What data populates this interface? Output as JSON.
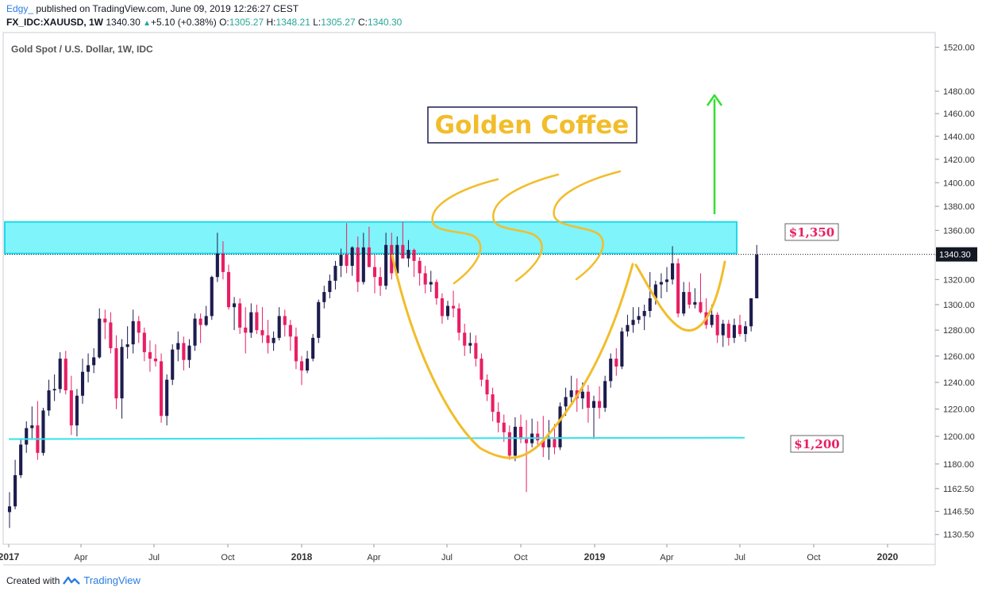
{
  "header": {
    "author": "Edgy_",
    "published": "published on TradingView.com, June 09, 2019 12:26:27 CEST",
    "symbol": "FX_IDC:XAUUSD, 1W",
    "last": "1340.30",
    "change": "+5.10 (+0.38%)",
    "ohlc": [
      {
        "label": "O:",
        "value": "1305.27"
      },
      {
        "label": "H:",
        "value": "1348.21"
      },
      {
        "label": "L:",
        "value": "1305.27"
      },
      {
        "label": "C:",
        "value": "1340.30"
      }
    ]
  },
  "footer": {
    "created": "Created with",
    "brand": "TradingView"
  },
  "colors": {
    "up": "#1c1c4e",
    "down": "#e91e63",
    "zone": "#7ff4fb",
    "zoneBorder": "#22d8e8",
    "support": "#33e3ee",
    "cup": "#f2bd2b",
    "arrow": "#33e033",
    "label": "#e91e63",
    "annot": "#f2bd2b"
  },
  "chart_data": {
    "type": "candlestick",
    "title": "Gold Spot / U.S. Dollar, 1W, IDC",
    "ylim": [
      1125,
      1530
    ],
    "y_scale": "log",
    "y_ticks": [
      1130.5,
      1146.5,
      1162.5,
      1180.0,
      1200.0,
      1220.0,
      1240.0,
      1260.0,
      1280.0,
      1300.0,
      1320.0,
      1340.0,
      1360.0,
      1380.0,
      1400.0,
      1420.0,
      1440.0,
      1460.0,
      1480.0,
      1520.0
    ],
    "x_ticks": [
      {
        "label": "2017",
        "date": "2017-01-01",
        "bold": true
      },
      {
        "label": "Apr",
        "date": "2017-04-01"
      },
      {
        "label": "Jul",
        "date": "2017-07-01"
      },
      {
        "label": "Oct",
        "date": "2017-10-01"
      },
      {
        "label": "2018",
        "date": "2018-01-01",
        "bold": true
      },
      {
        "label": "Apr",
        "date": "2018-04-01"
      },
      {
        "label": "Jul",
        "date": "2018-07-01"
      },
      {
        "label": "Oct",
        "date": "2018-10-01"
      },
      {
        "label": "2019",
        "date": "2019-01-01",
        "bold": true
      },
      {
        "label": "Apr",
        "date": "2019-04-01"
      },
      {
        "label": "Jul",
        "date": "2019-07-01"
      },
      {
        "label": "Oct",
        "date": "2019-10-01"
      },
      {
        "label": "2020",
        "date": "2020-01-01",
        "bold": true
      }
    ],
    "first_candle_date": "2017-01-02",
    "candles": [
      {
        "o": 1146,
        "h": 1160,
        "l": 1135,
        "c": 1150
      },
      {
        "o": 1150,
        "h": 1183,
        "l": 1148,
        "c": 1172
      },
      {
        "o": 1172,
        "h": 1198,
        "l": 1170,
        "c": 1194
      },
      {
        "o": 1194,
        "h": 1211,
        "l": 1188,
        "c": 1206
      },
      {
        "o": 1206,
        "h": 1222,
        "l": 1198,
        "c": 1208
      },
      {
        "o": 1208,
        "h": 1226,
        "l": 1183,
        "c": 1188
      },
      {
        "o": 1188,
        "h": 1221,
        "l": 1186,
        "c": 1219
      },
      {
        "o": 1219,
        "h": 1242,
        "l": 1215,
        "c": 1234
      },
      {
        "o": 1234,
        "h": 1246,
        "l": 1226,
        "c": 1235
      },
      {
        "o": 1235,
        "h": 1263,
        "l": 1232,
        "c": 1258
      },
      {
        "o": 1258,
        "h": 1264,
        "l": 1231,
        "c": 1234
      },
      {
        "o": 1234,
        "h": 1245,
        "l": 1201,
        "c": 1208
      },
      {
        "o": 1208,
        "h": 1235,
        "l": 1200,
        "c": 1230
      },
      {
        "o": 1230,
        "h": 1258,
        "l": 1224,
        "c": 1248
      },
      {
        "o": 1248,
        "h": 1262,
        "l": 1240,
        "c": 1253
      },
      {
        "o": 1253,
        "h": 1266,
        "l": 1247,
        "c": 1259
      },
      {
        "o": 1259,
        "h": 1297,
        "l": 1258,
        "c": 1289
      },
      {
        "o": 1289,
        "h": 1296,
        "l": 1273,
        "c": 1286
      },
      {
        "o": 1286,
        "h": 1294,
        "l": 1262,
        "c": 1266
      },
      {
        "o": 1266,
        "h": 1276,
        "l": 1220,
        "c": 1228
      },
      {
        "o": 1228,
        "h": 1273,
        "l": 1213,
        "c": 1267
      },
      {
        "o": 1267,
        "h": 1283,
        "l": 1258,
        "c": 1269
      },
      {
        "o": 1269,
        "h": 1296,
        "l": 1262,
        "c": 1287
      },
      {
        "o": 1287,
        "h": 1291,
        "l": 1270,
        "c": 1278
      },
      {
        "o": 1278,
        "h": 1282,
        "l": 1256,
        "c": 1263
      },
      {
        "o": 1263,
        "h": 1272,
        "l": 1248,
        "c": 1258
      },
      {
        "o": 1258,
        "h": 1269,
        "l": 1252,
        "c": 1256
      },
      {
        "o": 1256,
        "h": 1262,
        "l": 1210,
        "c": 1215
      },
      {
        "o": 1215,
        "h": 1246,
        "l": 1208,
        "c": 1242
      },
      {
        "o": 1242,
        "h": 1269,
        "l": 1238,
        "c": 1265
      },
      {
        "o": 1265,
        "h": 1279,
        "l": 1256,
        "c": 1270
      },
      {
        "o": 1270,
        "h": 1275,
        "l": 1249,
        "c": 1257
      },
      {
        "o": 1257,
        "h": 1273,
        "l": 1251,
        "c": 1268
      },
      {
        "o": 1268,
        "h": 1293,
        "l": 1264,
        "c": 1289
      },
      {
        "o": 1289,
        "h": 1293,
        "l": 1270,
        "c": 1284
      },
      {
        "o": 1284,
        "h": 1299,
        "l": 1283,
        "c": 1291
      },
      {
        "o": 1291,
        "h": 1323,
        "l": 1288,
        "c": 1322
      },
      {
        "o": 1322,
        "h": 1358,
        "l": 1318,
        "c": 1341
      },
      {
        "o": 1341,
        "h": 1351,
        "l": 1320,
        "c": 1326
      },
      {
        "o": 1326,
        "h": 1332,
        "l": 1296,
        "c": 1298
      },
      {
        "o": 1298,
        "h": 1306,
        "l": 1280,
        "c": 1301
      },
      {
        "o": 1301,
        "h": 1305,
        "l": 1277,
        "c": 1282
      },
      {
        "o": 1282,
        "h": 1298,
        "l": 1262,
        "c": 1278
      },
      {
        "o": 1278,
        "h": 1301,
        "l": 1274,
        "c": 1294
      },
      {
        "o": 1294,
        "h": 1300,
        "l": 1277,
        "c": 1280
      },
      {
        "o": 1280,
        "h": 1298,
        "l": 1270,
        "c": 1276
      },
      {
        "o": 1276,
        "h": 1288,
        "l": 1262,
        "c": 1270
      },
      {
        "o": 1270,
        "h": 1279,
        "l": 1264,
        "c": 1274
      },
      {
        "o": 1274,
        "h": 1298,
        "l": 1272,
        "c": 1291
      },
      {
        "o": 1291,
        "h": 1296,
        "l": 1275,
        "c": 1284
      },
      {
        "o": 1284,
        "h": 1288,
        "l": 1264,
        "c": 1275
      },
      {
        "o": 1275,
        "h": 1282,
        "l": 1250,
        "c": 1256
      },
      {
        "o": 1256,
        "h": 1260,
        "l": 1238,
        "c": 1249
      },
      {
        "o": 1249,
        "h": 1264,
        "l": 1247,
        "c": 1258
      },
      {
        "o": 1258,
        "h": 1277,
        "l": 1256,
        "c": 1274
      },
      {
        "o": 1274,
        "h": 1304,
        "l": 1270,
        "c": 1302
      },
      {
        "o": 1302,
        "h": 1315,
        "l": 1297,
        "c": 1310
      },
      {
        "o": 1310,
        "h": 1324,
        "l": 1305,
        "c": 1319
      },
      {
        "o": 1319,
        "h": 1335,
        "l": 1312,
        "c": 1331
      },
      {
        "o": 1331,
        "h": 1345,
        "l": 1322,
        "c": 1340
      },
      {
        "o": 1340,
        "h": 1366,
        "l": 1325,
        "c": 1331
      },
      {
        "o": 1331,
        "h": 1347,
        "l": 1323,
        "c": 1346
      },
      {
        "o": 1346,
        "h": 1355,
        "l": 1310,
        "c": 1318
      },
      {
        "o": 1318,
        "h": 1358,
        "l": 1316,
        "c": 1346
      },
      {
        "o": 1346,
        "h": 1363,
        "l": 1330,
        "c": 1330
      },
      {
        "o": 1330,
        "h": 1340,
        "l": 1309,
        "c": 1322
      },
      {
        "o": 1322,
        "h": 1330,
        "l": 1307,
        "c": 1315
      },
      {
        "o": 1315,
        "h": 1358,
        "l": 1312,
        "c": 1348
      },
      {
        "o": 1348,
        "h": 1358,
        "l": 1320,
        "c": 1325
      },
      {
        "o": 1325,
        "h": 1355,
        "l": 1320,
        "c": 1348
      },
      {
        "o": 1348,
        "h": 1367,
        "l": 1337,
        "c": 1337
      },
      {
        "o": 1337,
        "h": 1352,
        "l": 1330,
        "c": 1344
      },
      {
        "o": 1344,
        "h": 1345,
        "l": 1322,
        "c": 1335
      },
      {
        "o": 1335,
        "h": 1338,
        "l": 1315,
        "c": 1325
      },
      {
        "o": 1325,
        "h": 1331,
        "l": 1309,
        "c": 1316
      },
      {
        "o": 1316,
        "h": 1327,
        "l": 1310,
        "c": 1318
      },
      {
        "o": 1318,
        "h": 1320,
        "l": 1300,
        "c": 1305
      },
      {
        "o": 1305,
        "h": 1309,
        "l": 1285,
        "c": 1291
      },
      {
        "o": 1291,
        "h": 1303,
        "l": 1288,
        "c": 1299
      },
      {
        "o": 1299,
        "h": 1311,
        "l": 1290,
        "c": 1297
      },
      {
        "o": 1297,
        "h": 1301,
        "l": 1272,
        "c": 1278
      },
      {
        "o": 1278,
        "h": 1285,
        "l": 1260,
        "c": 1268
      },
      {
        "o": 1268,
        "h": 1278,
        "l": 1262,
        "c": 1270
      },
      {
        "o": 1270,
        "h": 1276,
        "l": 1252,
        "c": 1258
      },
      {
        "o": 1258,
        "h": 1262,
        "l": 1237,
        "c": 1242
      },
      {
        "o": 1242,
        "h": 1246,
        "l": 1226,
        "c": 1231
      },
      {
        "o": 1231,
        "h": 1236,
        "l": 1211,
        "c": 1218
      },
      {
        "o": 1218,
        "h": 1225,
        "l": 1203,
        "c": 1210
      },
      {
        "o": 1210,
        "h": 1216,
        "l": 1196,
        "c": 1203
      },
      {
        "o": 1203,
        "h": 1208,
        "l": 1183,
        "c": 1186
      },
      {
        "o": 1186,
        "h": 1214,
        "l": 1182,
        "c": 1207
      },
      {
        "o": 1207,
        "h": 1216,
        "l": 1195,
        "c": 1198
      },
      {
        "o": 1198,
        "h": 1212,
        "l": 1160,
        "c": 1195
      },
      {
        "o": 1195,
        "h": 1213,
        "l": 1192,
        "c": 1202
      },
      {
        "o": 1202,
        "h": 1211,
        "l": 1194,
        "c": 1197
      },
      {
        "o": 1197,
        "h": 1215,
        "l": 1185,
        "c": 1192
      },
      {
        "o": 1192,
        "h": 1212,
        "l": 1183,
        "c": 1198
      },
      {
        "o": 1198,
        "h": 1209,
        "l": 1187,
        "c": 1192
      },
      {
        "o": 1192,
        "h": 1225,
        "l": 1190,
        "c": 1222
      },
      {
        "o": 1222,
        "h": 1236,
        "l": 1215,
        "c": 1229
      },
      {
        "o": 1229,
        "h": 1245,
        "l": 1225,
        "c": 1234
      },
      {
        "o": 1234,
        "h": 1243,
        "l": 1218,
        "c": 1228
      },
      {
        "o": 1228,
        "h": 1240,
        "l": 1220,
        "c": 1233
      },
      {
        "o": 1233,
        "h": 1238,
        "l": 1210,
        "c": 1221
      },
      {
        "o": 1221,
        "h": 1230,
        "l": 1198,
        "c": 1226
      },
      {
        "o": 1226,
        "h": 1237,
        "l": 1213,
        "c": 1221
      },
      {
        "o": 1221,
        "h": 1245,
        "l": 1218,
        "c": 1241
      },
      {
        "o": 1241,
        "h": 1262,
        "l": 1236,
        "c": 1258
      },
      {
        "o": 1258,
        "h": 1266,
        "l": 1245,
        "c": 1252
      },
      {
        "o": 1252,
        "h": 1282,
        "l": 1250,
        "c": 1279
      },
      {
        "o": 1279,
        "h": 1292,
        "l": 1275,
        "c": 1284
      },
      {
        "o": 1284,
        "h": 1298,
        "l": 1278,
        "c": 1288
      },
      {
        "o": 1288,
        "h": 1298,
        "l": 1285,
        "c": 1291
      },
      {
        "o": 1291,
        "h": 1300,
        "l": 1280,
        "c": 1295
      },
      {
        "o": 1295,
        "h": 1326,
        "l": 1290,
        "c": 1305
      },
      {
        "o": 1305,
        "h": 1319,
        "l": 1300,
        "c": 1316
      },
      {
        "o": 1316,
        "h": 1325,
        "l": 1305,
        "c": 1318
      },
      {
        "o": 1318,
        "h": 1330,
        "l": 1310,
        "c": 1320
      },
      {
        "o": 1320,
        "h": 1347,
        "l": 1316,
        "c": 1333
      },
      {
        "o": 1333,
        "h": 1337,
        "l": 1290,
        "c": 1293
      },
      {
        "o": 1293,
        "h": 1318,
        "l": 1291,
        "c": 1310
      },
      {
        "o": 1310,
        "h": 1318,
        "l": 1297,
        "c": 1300
      },
      {
        "o": 1300,
        "h": 1313,
        "l": 1297,
        "c": 1302
      },
      {
        "o": 1302,
        "h": 1325,
        "l": 1293,
        "c": 1294
      },
      {
        "o": 1294,
        "h": 1305,
        "l": 1281,
        "c": 1284
      },
      {
        "o": 1284,
        "h": 1300,
        "l": 1282,
        "c": 1292
      },
      {
        "o": 1292,
        "h": 1294,
        "l": 1270,
        "c": 1276
      },
      {
        "o": 1276,
        "h": 1288,
        "l": 1267,
        "c": 1285
      },
      {
        "o": 1285,
        "h": 1288,
        "l": 1268,
        "c": 1274
      },
      {
        "o": 1274,
        "h": 1289,
        "l": 1270,
        "c": 1284
      },
      {
        "o": 1284,
        "h": 1292,
        "l": 1275,
        "c": 1277
      },
      {
        "o": 1277,
        "h": 1287,
        "l": 1271,
        "c": 1283
      },
      {
        "o": 1283,
        "h": 1305,
        "l": 1279,
        "c": 1305
      },
      {
        "o": 1305,
        "h": 1348,
        "l": 1305,
        "c": 1340
      }
    ],
    "last_price": "1340.30",
    "resistance_zone": [
      1341,
      1367
    ],
    "resistance_label": "$1,350",
    "support_line": {
      "start": {
        "date": "2017-01-01",
        "price": 1198
      },
      "end": {
        "date": "2019-07-07",
        "price": 1199
      }
    },
    "support_label": "$1,200",
    "annotation": "Golden Coffee"
  }
}
